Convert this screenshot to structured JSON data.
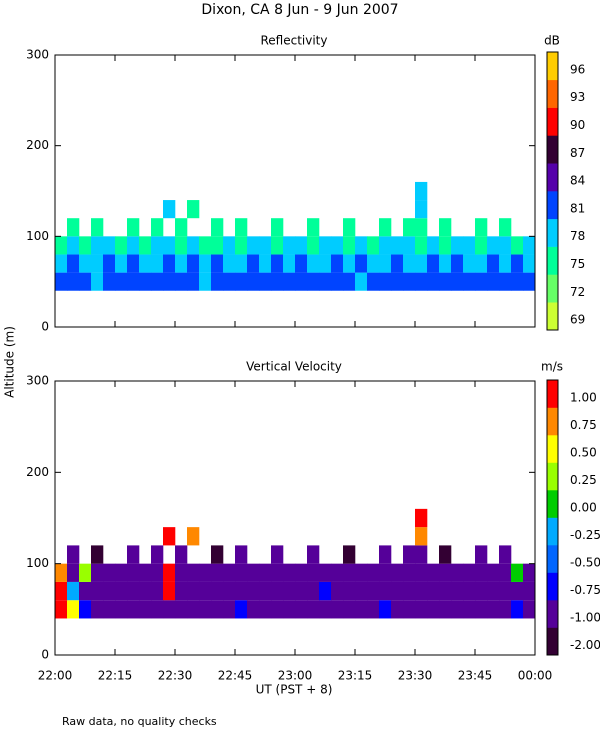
{
  "title": "Dixon, CA  8 Jun -  9 Jun 2007",
  "y_label": "Altitude (m)",
  "x_label": "UT  (PST + 8)",
  "note": "Raw data, no quality checks",
  "chart_data": [
    {
      "type": "heatmap",
      "title": "Reflectivity",
      "unit": "dB",
      "x": [
        22,
        22.05,
        22.1,
        22.15,
        22.2,
        22.25,
        22.3,
        22.35,
        22.4,
        22.45,
        22.5,
        22.55,
        22.6,
        22.65,
        22.7,
        22.75,
        22.8,
        22.85,
        22.9,
        22.95,
        23,
        23.05,
        23.1,
        23.15,
        23.2,
        23.25,
        23.3,
        23.35,
        23.4,
        23.45,
        23.5,
        23.55,
        23.6,
        23.65,
        23.7,
        23.75,
        23.8,
        23.85,
        23.9,
        23.95,
        24
      ],
      "y": [
        40,
        60,
        80,
        100,
        120,
        140,
        160
      ],
      "z": [
        [
          81,
          81,
          81,
          78,
          81,
          81,
          81,
          81,
          81,
          81,
          81,
          81,
          78,
          81,
          81,
          81,
          81,
          81,
          81,
          81,
          81,
          81,
          81,
          81,
          81,
          78,
          81,
          81,
          81,
          81,
          81,
          81,
          81,
          81,
          81,
          81,
          81,
          81,
          81,
          81
        ],
        [
          78,
          81,
          78,
          78,
          81,
          78,
          81,
          78,
          78,
          81,
          78,
          81,
          78,
          81,
          78,
          78,
          81,
          78,
          81,
          78,
          81,
          78,
          78,
          81,
          78,
          81,
          78,
          78,
          81,
          78,
          78,
          81,
          78,
          81,
          78,
          78,
          81,
          78,
          81,
          78
        ],
        [
          75,
          78,
          75,
          78,
          78,
          75,
          78,
          75,
          78,
          78,
          75,
          78,
          75,
          75,
          78,
          75,
          78,
          78,
          75,
          78,
          78,
          75,
          78,
          78,
          75,
          78,
          75,
          78,
          78,
          78,
          75,
          78,
          75,
          78,
          78,
          75,
          78,
          78,
          75,
          78
        ],
        [
          null,
          75,
          null,
          75,
          null,
          null,
          75,
          null,
          75,
          null,
          75,
          null,
          null,
          75,
          null,
          75,
          null,
          null,
          75,
          null,
          null,
          75,
          null,
          null,
          75,
          null,
          null,
          75,
          null,
          75,
          75,
          null,
          75,
          null,
          null,
          75,
          null,
          75,
          null,
          null
        ],
        [
          null,
          null,
          null,
          null,
          null,
          null,
          null,
          null,
          null,
          78,
          null,
          75,
          null,
          null,
          null,
          null,
          null,
          null,
          null,
          null,
          null,
          null,
          null,
          null,
          null,
          null,
          null,
          null,
          null,
          null,
          78,
          null,
          null,
          null,
          null,
          null,
          null,
          null,
          null,
          null
        ],
        [
          null,
          null,
          null,
          null,
          null,
          null,
          null,
          null,
          null,
          null,
          null,
          null,
          null,
          null,
          null,
          null,
          null,
          null,
          null,
          null,
          null,
          null,
          null,
          null,
          null,
          null,
          null,
          null,
          null,
          null,
          78,
          null,
          null,
          null,
          null,
          null,
          null,
          null,
          null,
          null
        ]
      ],
      "xlim": [
        22,
        24
      ],
      "xticks": [
        {
          "value": 22,
          "label": "22:00"
        },
        {
          "value": 22.25,
          "label": "22:15"
        },
        {
          "value": 22.5,
          "label": "22:30"
        },
        {
          "value": 22.75,
          "label": "22:45"
        },
        {
          "value": 23,
          "label": "23:00"
        },
        {
          "value": 23.25,
          "label": "23:15"
        },
        {
          "value": 23.5,
          "label": "23:30"
        },
        {
          "value": 23.75,
          "label": "23:45"
        },
        {
          "value": 24,
          "label": "00:00"
        }
      ],
      "ylim": [
        0,
        300
      ],
      "yticks": [
        0,
        100,
        200,
        300
      ],
      "colorbar": {
        "ticks": [
          69,
          72,
          75,
          78,
          81,
          84,
          87,
          90,
          93,
          96
        ],
        "colors": [
          "#ccff33",
          "#66ff66",
          "#00ff99",
          "#00ccff",
          "#0044ff",
          "#5500aa",
          "#330033",
          "#ff0000",
          "#ff6600",
          "#ffcc00"
        ]
      }
    },
    {
      "type": "heatmap",
      "title": "Vertical Velocity",
      "unit": "m/s",
      "x": [
        22,
        22.05,
        22.1,
        22.15,
        22.2,
        22.25,
        22.3,
        22.35,
        22.4,
        22.45,
        22.5,
        22.55,
        22.6,
        22.65,
        22.7,
        22.75,
        22.8,
        22.85,
        22.9,
        22.95,
        23,
        23.05,
        23.1,
        23.15,
        23.2,
        23.25,
        23.3,
        23.35,
        23.4,
        23.45,
        23.5,
        23.55,
        23.6,
        23.65,
        23.7,
        23.75,
        23.8,
        23.85,
        23.9,
        23.95,
        24
      ],
      "y": [
        40,
        60,
        80,
        100,
        120,
        140,
        160
      ],
      "z": [
        [
          1,
          0.5,
          -0.75,
          -1,
          -1,
          -1,
          -1,
          -1,
          -1,
          -1,
          -1,
          -1,
          -1,
          -1,
          -1,
          -0.75,
          -1,
          -1,
          -1,
          -1,
          -1,
          -1,
          -1,
          -1,
          -1,
          -1,
          -1,
          -0.75,
          -1,
          -1,
          -1,
          -1,
          -1,
          -1,
          -1,
          -1,
          -1,
          -1,
          -0.75,
          -1
        ],
        [
          1,
          -0.25,
          -1,
          -1,
          -1,
          -1,
          -1,
          -1,
          -1,
          1,
          -1,
          -1,
          -1,
          -1,
          -1,
          -1,
          -1,
          -1,
          -1,
          -1,
          -1,
          -1,
          -0.75,
          -1,
          -1,
          -1,
          -1,
          -1,
          -1,
          -1,
          -1,
          -1,
          -1,
          -1,
          -1,
          -1,
          -1,
          -1,
          -1,
          -1
        ],
        [
          0.75,
          -1,
          0.25,
          -1,
          -1,
          -1,
          -1,
          -1,
          -1,
          1,
          -1,
          -1,
          -1,
          -1,
          -1,
          -1,
          -1,
          -1,
          -1,
          -1,
          -1,
          -1,
          -1,
          -1,
          -1,
          -1,
          -1,
          -1,
          -1,
          -1,
          -1,
          -1,
          -1,
          -1,
          -1,
          -1,
          -1,
          -1,
          0,
          -1
        ],
        [
          null,
          -1,
          null,
          -2,
          null,
          null,
          -1,
          null,
          -1,
          null,
          -1,
          null,
          null,
          -2,
          null,
          -1,
          null,
          null,
          -1,
          null,
          null,
          -1,
          null,
          null,
          -2,
          null,
          null,
          -1,
          null,
          -1,
          -1,
          null,
          -2,
          null,
          null,
          -1,
          null,
          -1,
          null,
          null
        ],
        [
          null,
          null,
          null,
          null,
          null,
          null,
          null,
          null,
          null,
          1,
          null,
          0.75,
          null,
          null,
          null,
          null,
          null,
          null,
          null,
          null,
          null,
          null,
          null,
          null,
          null,
          null,
          null,
          null,
          null,
          null,
          0.75,
          null,
          null,
          null,
          null,
          null,
          null,
          null,
          null,
          null
        ],
        [
          null,
          null,
          null,
          null,
          null,
          null,
          null,
          null,
          null,
          null,
          null,
          null,
          null,
          null,
          null,
          null,
          null,
          null,
          null,
          null,
          null,
          null,
          null,
          null,
          null,
          null,
          null,
          null,
          null,
          null,
          1,
          null,
          null,
          null,
          null,
          null,
          null,
          null,
          null,
          null
        ]
      ],
      "xlim": [
        22,
        24
      ],
      "xticks": [
        {
          "value": 22,
          "label": "22:00"
        },
        {
          "value": 22.25,
          "label": "22:15"
        },
        {
          "value": 22.5,
          "label": "22:30"
        },
        {
          "value": 22.75,
          "label": "22:45"
        },
        {
          "value": 23,
          "label": "23:00"
        },
        {
          "value": 23.25,
          "label": "23:15"
        },
        {
          "value": 23.5,
          "label": "23:30"
        },
        {
          "value": 23.75,
          "label": "23:45"
        },
        {
          "value": 24,
          "label": "00:00"
        }
      ],
      "ylim": [
        0,
        300
      ],
      "yticks": [
        0,
        100,
        200,
        300
      ],
      "colorbar": {
        "ticks": [
          {
            "value": -2,
            "label": "-2.00"
          },
          {
            "value": -1,
            "label": "-1.00"
          },
          {
            "value": -0.75,
            "label": "-0.75"
          },
          {
            "value": -0.5,
            "label": "-0.50"
          },
          {
            "value": -0.25,
            "label": "-0.25"
          },
          {
            "value": 0,
            "label": "0.00"
          },
          {
            "value": 0.25,
            "label": "0.25"
          },
          {
            "value": 0.5,
            "label": "0.50"
          },
          {
            "value": 0.75,
            "label": "0.75"
          },
          {
            "value": 1,
            "label": "1.00"
          }
        ],
        "colors": [
          "#330033",
          "#550099",
          "#0000ff",
          "#0066ff",
          "#00aaff",
          "#00cc00",
          "#99ff00",
          "#ffff00",
          "#ff8800",
          "#ff0000"
        ]
      }
    }
  ]
}
